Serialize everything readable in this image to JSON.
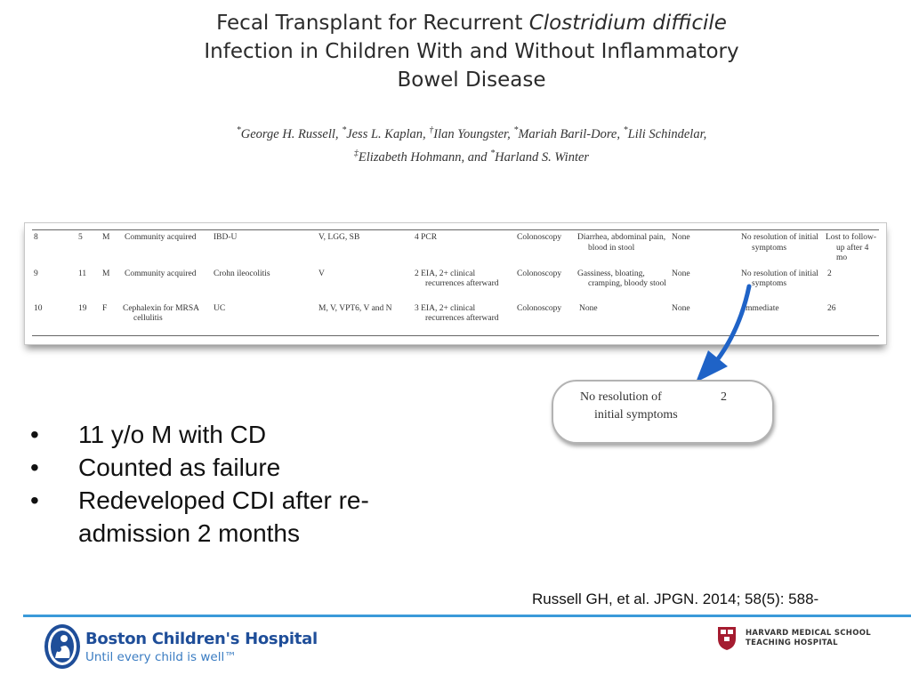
{
  "title": {
    "line1_a": "Fecal Transplant for Recurrent ",
    "line1_b": "Clostridium difficile",
    "line2": "Infection in Children With and Without Inflammatory",
    "line3": "Bowel Disease"
  },
  "authors": {
    "sym1": "*",
    "a1": "George H. Russell, ",
    "sym2": "*",
    "a2": "Jess L. Kaplan, ",
    "sym3": "†",
    "a3": "Ilan Youngster, ",
    "sym4": "*",
    "a4": "Mariah Baril-Dore, ",
    "sym5": "*",
    "a5": "Lili Schindelar,",
    "sym6": "‡",
    "a6": "Elizabeth Hohmann, and ",
    "sym7": "*",
    "a7": "Harland S. Winter"
  },
  "table": {
    "rows": [
      [
        "8",
        "5",
        "M",
        "Community acquired",
        "IBD-U",
        "V, LGG, SB",
        "4 PCR",
        "Colonoscopy",
        "Diarrhea, abdominal pain, blood in stool",
        "None",
        "No resolution of initial symptoms",
        "Lost to follow-up after 4 mo"
      ],
      [
        "9",
        "11",
        "M",
        "Community acquired",
        "Crohn ileocolitis",
        "V",
        "2 EIA, 2+ clinical recurrences afterward",
        "Colonoscopy",
        "Gassiness, bloating, cramping, bloody stool",
        "None",
        "No resolution of initial symptoms",
        "2"
      ],
      [
        "10",
        "19",
        "F",
        "Cephalexin for MRSA cellulitis",
        "UC",
        "M, V, VPT6, V and N",
        "3 EIA, 2+ clinical recurrences afterward",
        "Colonoscopy",
        "None",
        "None",
        "Immediate",
        "26"
      ]
    ]
  },
  "callout": {
    "line1": "No resolution of",
    "line2": "initial symptoms",
    "value": "2"
  },
  "bullets": [
    "11 y/o M with CD",
    "Counted as failure",
    "Redeveloped CDI after re-admission 2 months"
  ],
  "bullet_symbol": "•",
  "citation": "Russell GH, et al. JPGN. 2014; 58(5): 588-",
  "footer": {
    "hospital_name": "Boston Children's Hospital",
    "tagline": "Until every child is well™",
    "hms_line1": "HARVARD MEDICAL SCHOOL",
    "hms_line2": "TEACHING HOSPITAL",
    "accent_color": "#3a9ad9",
    "brand_color": "#1f4e99",
    "harvard_color": "#a51c30"
  }
}
